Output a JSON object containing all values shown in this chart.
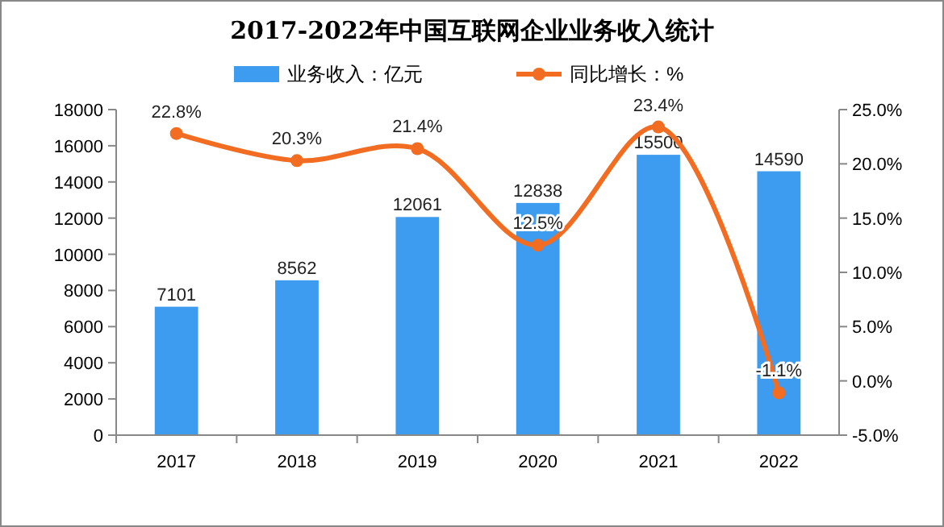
{
  "chart_data": {
    "type": "bar",
    "title": "2017-2022年中国互联网企业业务收入统计",
    "categories": [
      "2017",
      "2018",
      "2019",
      "2020",
      "2021",
      "2022"
    ],
    "series": [
      {
        "name": "业务收入：亿元",
        "color": "#3d9bf0",
        "values": [
          7101,
          8562,
          12061,
          12838,
          15500,
          14590
        ]
      },
      {
        "name": "同比增长：%",
        "type": "line",
        "axis": "y2",
        "color": "#f26d21",
        "marker": "circle",
        "values": [
          22.8,
          20.3,
          21.4,
          12.5,
          23.4,
          -1.1
        ],
        "value_labels": [
          "22.8%",
          "20.3%",
          "21.4%",
          "12.5%",
          "23.4%",
          "-1.1%"
        ]
      }
    ],
    "data_labels": true,
    "ylim": [
      0,
      18000
    ],
    "yticks": [
      0,
      2000,
      4000,
      6000,
      8000,
      10000,
      12000,
      14000,
      16000,
      18000
    ],
    "y2lim": [
      -5,
      25
    ],
    "y2ticks": [
      {
        "value": -5,
        "label": "-5.0%"
      },
      {
        "value": 0,
        "label": "0.0%"
      },
      {
        "value": 5,
        "label": "5.0%"
      },
      {
        "value": 10,
        "label": "10.0%"
      },
      {
        "value": 15,
        "label": "15.0%"
      },
      {
        "value": 20,
        "label": "20.0%"
      },
      {
        "value": 25,
        "label": "25.0%"
      }
    ],
    "legend": "top",
    "grid": false
  }
}
